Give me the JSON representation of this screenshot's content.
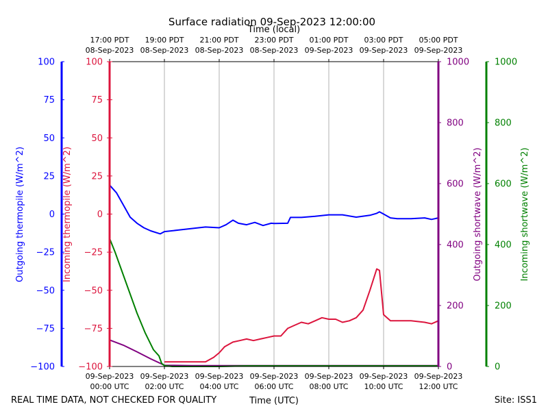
{
  "chart_data": {
    "type": "line",
    "title": "Surface radiation 09-Sep-2023 12:00:00",
    "top_axis_label": "Time (local)",
    "xlabel": "Time (UTC)",
    "footer_left": "REAL TIME DATA, NOT CHECKED FOR QUALITY",
    "footer_right": "Site: ISS1",
    "x_range_hours_utc": [
      0,
      12
    ],
    "top_ticks": [
      {
        "hour": 0,
        "line1": "17:00 PDT",
        "line2": "08-Sep-2023"
      },
      {
        "hour": 2,
        "line1": "19:00 PDT",
        "line2": "08-Sep-2023"
      },
      {
        "hour": 4,
        "line1": "21:00 PDT",
        "line2": "08-Sep-2023"
      },
      {
        "hour": 6,
        "line1": "23:00 PDT",
        "line2": "08-Sep-2023"
      },
      {
        "hour": 8,
        "line1": "01:00 PDT",
        "line2": "09-Sep-2023"
      },
      {
        "hour": 10,
        "line1": "03:00 PDT",
        "line2": "09-Sep-2023"
      },
      {
        "hour": 12,
        "line1": "05:00 PDT",
        "line2": "09-Sep-2023"
      }
    ],
    "bottom_ticks": [
      {
        "hour": 0,
        "line1": "09-Sep-2023",
        "line2": "00:00 UTC"
      },
      {
        "hour": 2,
        "line1": "09-Sep-2023",
        "line2": "02:00 UTC"
      },
      {
        "hour": 4,
        "line1": "09-Sep-2023",
        "line2": "04:00 UTC"
      },
      {
        "hour": 6,
        "line1": "09-Sep-2023",
        "line2": "06:00 UTC"
      },
      {
        "hour": 8,
        "line1": "09-Sep-2023",
        "line2": "08:00 UTC"
      },
      {
        "hour": 10,
        "line1": "09-Sep-2023",
        "line2": "10:00 UTC"
      },
      {
        "hour": 12,
        "line1": "09-Sep-2023",
        "line2": "12:00 UTC"
      }
    ],
    "axes": [
      {
        "id": "outgoing_thermopile",
        "label": "Outgoing thermopile (W/m^2)",
        "color": "#0000ff",
        "range": [
          -100,
          100
        ],
        "ticks": [
          "100",
          "75",
          "50",
          "25",
          "0",
          "−25",
          "−50",
          "−75",
          "−100"
        ]
      },
      {
        "id": "incoming_thermopile",
        "label": "Incoming thermopile (W/m^2)",
        "color": "#dc143c",
        "range": [
          -100,
          100
        ],
        "ticks": [
          "100",
          "75",
          "50",
          "25",
          "0",
          "−25",
          "−50",
          "−75",
          "−100"
        ]
      },
      {
        "id": "outgoing_shortwave",
        "label": "Outgoing shortwave (W/m^2)",
        "color": "#800080",
        "range": [
          0,
          1000
        ],
        "ticks": [
          "1000",
          "800",
          "600",
          "400",
          "200",
          "0"
        ]
      },
      {
        "id": "incoming_shortwave",
        "label": "Incoming shortwave (W/m^2)",
        "color": "#008000",
        "range": [
          0,
          1000
        ],
        "ticks": [
          "1000",
          "800",
          "600",
          "400",
          "200",
          "0"
        ]
      }
    ],
    "series": [
      {
        "name": "Outgoing thermopile",
        "axis": "outgoing_thermopile",
        "color": "#0000ff",
        "x": [
          0,
          0.25,
          0.5,
          0.75,
          1.0,
          1.25,
          1.5,
          1.85,
          2.0,
          2.5,
          3.0,
          3.5,
          4.0,
          4.25,
          4.5,
          4.7,
          5.0,
          5.3,
          5.6,
          5.9,
          6.0,
          6.5,
          6.6,
          7.0,
          7.5,
          8.0,
          8.5,
          9.0,
          9.5,
          9.75,
          9.85,
          10.0,
          10.25,
          10.5,
          11.0,
          11.5,
          11.75,
          12.0
        ],
        "y": [
          19,
          14,
          6,
          -2,
          -6,
          -9,
          -11,
          -13,
          -11.5,
          -10.5,
          -9.5,
          -8.5,
          -9,
          -7,
          -4,
          -6,
          -7,
          -5.5,
          -7.5,
          -6,
          -6.2,
          -6,
          -2.2,
          -2.2,
          -1.5,
          -0.5,
          -0.5,
          -2,
          -0.8,
          0.5,
          1.5,
          0,
          -2.5,
          -3,
          -3,
          -2.5,
          -3.5,
          -2.5
        ]
      },
      {
        "name": "Incoming thermopile",
        "axis": "incoming_thermopile",
        "color": "#dc143c",
        "x": [
          2.0,
          2.5,
          3.0,
          3.5,
          3.8,
          4.0,
          4.2,
          4.5,
          4.75,
          5.0,
          5.25,
          5.5,
          5.75,
          6.0,
          6.25,
          6.5,
          6.75,
          7.0,
          7.25,
          7.5,
          7.75,
          8.0,
          8.25,
          8.5,
          8.75,
          9.0,
          9.25,
          9.5,
          9.75,
          9.85,
          10.0,
          10.25,
          10.5,
          11.0,
          11.5,
          11.75,
          12.0
        ],
        "y": [
          -97,
          -97,
          -97,
          -97,
          -94,
          -91,
          -87,
          -84,
          -83,
          -82,
          -83,
          -82,
          -81,
          -80,
          -80,
          -75,
          -73,
          -71,
          -72,
          -70,
          -68,
          -69,
          -69,
          -71,
          -70,
          -68,
          -63,
          -50,
          -36,
          -37,
          -66,
          -70,
          -70,
          -70,
          -71,
          -72,
          -70
        ]
      },
      {
        "name": "Outgoing shortwave",
        "axis": "outgoing_shortwave",
        "color": "#800080",
        "x": [
          0,
          0.5,
          1.0,
          1.5,
          2.0,
          3.0,
          4.0,
          5.0,
          6.0,
          7.0,
          8.0,
          9.0,
          10.0,
          11.0,
          12.0
        ],
        "y": [
          87,
          70,
          48,
          25,
          4,
          3,
          3,
          3,
          3,
          3,
          3,
          3,
          3,
          3,
          3
        ]
      },
      {
        "name": "Incoming shortwave",
        "axis": "incoming_shortwave",
        "color": "#008000",
        "x": [
          0,
          0.2,
          0.4,
          0.6,
          0.8,
          1.0,
          1.3,
          1.6,
          1.8,
          1.9,
          2.0,
          2.3,
          3.0,
          4.0,
          5.0,
          6.0,
          7.0,
          8.0,
          9.0,
          10.0,
          11.0,
          12.0
        ],
        "y": [
          420,
          375,
          325,
          275,
          225,
          175,
          110,
          55,
          35,
          10,
          3,
          0,
          0,
          0,
          2,
          2,
          2,
          2,
          2,
          2,
          2,
          2
        ]
      }
    ]
  }
}
